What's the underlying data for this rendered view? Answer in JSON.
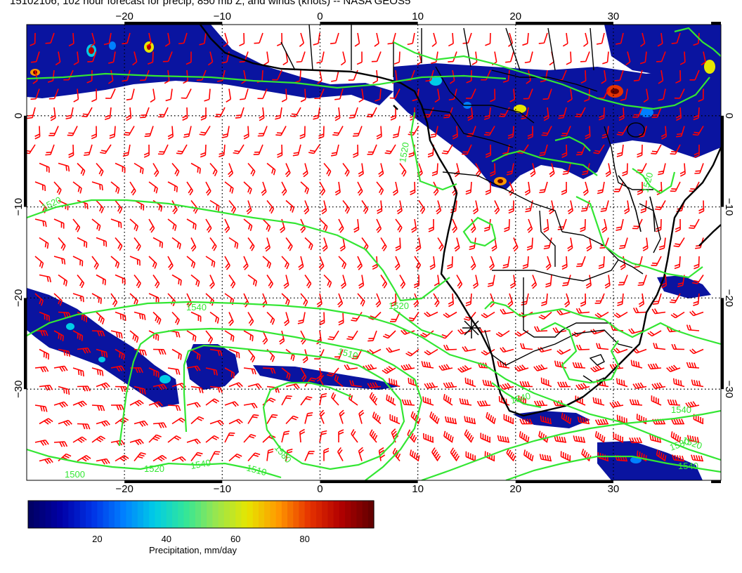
{
  "title": "15102106, 102 hour forecast for precip, 850 mb Z, and winds (knots) -- NASA GEOS5",
  "map": {
    "lon_ticks": [
      "−20",
      "−10",
      "0",
      "10",
      "20",
      "30"
    ],
    "lat_ticks": [
      "0",
      "−10",
      "−20",
      "−30"
    ],
    "lon_values": [
      -20,
      -10,
      0,
      10,
      20,
      30
    ],
    "lat_values": [
      0,
      -10,
      -20,
      -30
    ],
    "lon_range": [
      -30,
      41
    ],
    "lat_range": [
      -40,
      10
    ]
  },
  "contour_labels": [
    "1520",
    "1520",
    "1520",
    "1540",
    "1520",
    "1510",
    "1540",
    "1540",
    "1580",
    "1540",
    "1510",
    "1520",
    "1500",
    "1580",
    "1540",
    "1520"
  ],
  "colorbar": {
    "label": "Precipitation, mm/day",
    "ticks": [
      "20",
      "40",
      "60",
      "80"
    ],
    "tick_values": [
      20,
      40,
      60,
      80
    ],
    "range": [
      0,
      100
    ],
    "colors": [
      "#000066",
      "#0000a8",
      "#0033e6",
      "#0080ff",
      "#00cce6",
      "#33e699",
      "#99e64d",
      "#e6e600",
      "#ff9900",
      "#e63300",
      "#b30000",
      "#660000"
    ]
  },
  "style": {
    "contour_color": "#33e633",
    "barb_color": "#ff0000",
    "coast_color": "#000000",
    "precip_main": "#0a14a0"
  }
}
